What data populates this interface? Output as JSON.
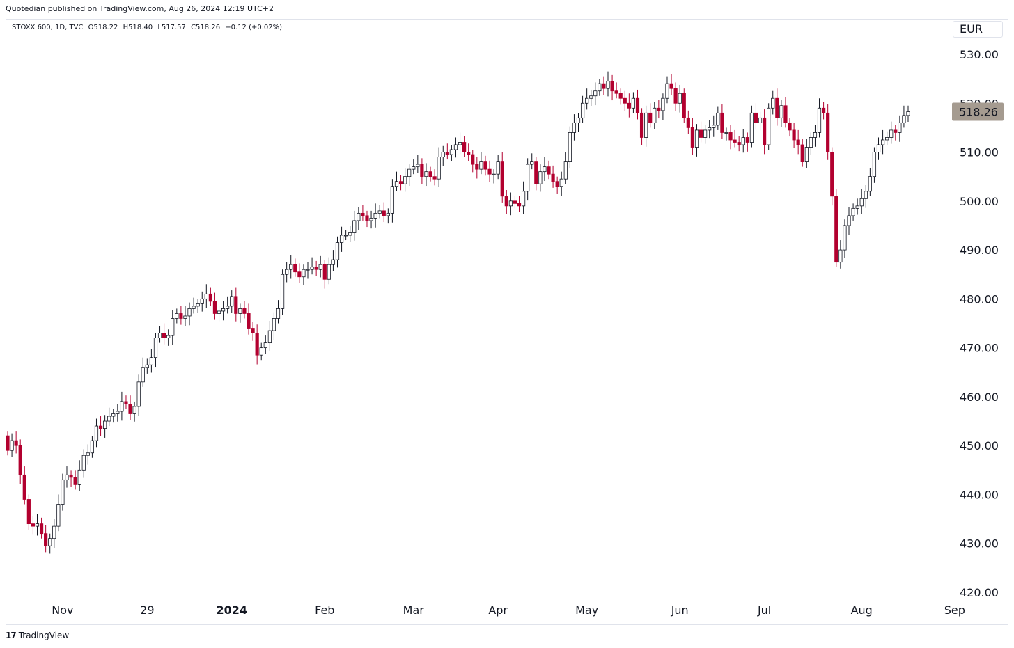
{
  "header": {
    "published_line": "Quotedian published on TradingView.com, Aug 26, 2024 12:19 UTC+2"
  },
  "legend": {
    "symbol_line": "STOXX 600, 1D, TVC",
    "open": "O518.22",
    "high": "H518.40",
    "low": "L517.57",
    "close": "C518.26",
    "change": "+0.12 (+0.02%)"
  },
  "currency": "EUR",
  "footer": {
    "brand": "TradingView",
    "logo_text": "17"
  },
  "colors": {
    "up": "#ffffff",
    "down": "#b2002f",
    "up_border": "#131722",
    "last_price_bg": "#a59b90"
  },
  "chart_data": {
    "type": "candlestick",
    "title": "STOXX 600, 1D, TVC",
    "ylabel": "EUR",
    "ylim": [
      420,
      530
    ],
    "yticks": [
      420,
      430,
      440,
      450,
      460,
      470,
      480,
      490,
      500,
      510,
      520,
      530
    ],
    "ytick_labels": [
      "420.00",
      "430.00",
      "440.00",
      "450.00",
      "460.00",
      "470.00",
      "480.00",
      "490.00",
      "500.00",
      "510.00",
      "520.00",
      "530.00"
    ],
    "xtick_labels": [
      {
        "label": "Nov",
        "index": 13,
        "bold": false
      },
      {
        "label": "29",
        "index": 33,
        "bold": false
      },
      {
        "label": "2024",
        "index": 53,
        "bold": true
      },
      {
        "label": "Feb",
        "index": 75,
        "bold": false
      },
      {
        "label": "Mar",
        "index": 96,
        "bold": false
      },
      {
        "label": "Apr",
        "index": 116,
        "bold": false
      },
      {
        "label": "May",
        "index": 137,
        "bold": false
      },
      {
        "label": "Jun",
        "index": 159,
        "bold": false
      },
      {
        "label": "Jul",
        "index": 179,
        "bold": false
      },
      {
        "label": "Aug",
        "index": 202,
        "bold": false
      },
      {
        "label": "Sep",
        "index": 224,
        "bold": false
      }
    ],
    "last_price": "518.26",
    "grid": false,
    "closes": [
      449.0,
      451.0,
      450.0,
      444.0,
      439.0,
      434.0,
      433.5,
      434.0,
      432.0,
      429.5,
      431.0,
      433.5,
      438.0,
      443.0,
      444.0,
      443.5,
      442.0,
      445.0,
      448.0,
      448.5,
      451.0,
      454.0,
      453.5,
      455.0,
      456.0,
      456.5,
      457.0,
      459.0,
      458.5,
      456.5,
      458.0,
      463.0,
      466.0,
      466.5,
      468.0,
      472.0,
      473.0,
      472.0,
      472.5,
      476.0,
      477.0,
      476.0,
      476.5,
      478.0,
      478.5,
      479.0,
      480.0,
      481.0,
      479.5,
      477.0,
      477.5,
      478.0,
      478.5,
      480.5,
      477.0,
      478.0,
      477.0,
      474.0,
      473.0,
      468.5,
      470.0,
      471.0,
      473.5,
      476.0,
      478.0,
      485.0,
      486.0,
      487.0,
      485.5,
      484.5,
      486.0,
      486.0,
      486.5,
      486.0,
      487.0,
      484.0,
      487.0,
      488.0,
      491.5,
      493.0,
      493.0,
      493.5,
      496.0,
      497.5,
      497.0,
      496.0,
      496.5,
      497.5,
      498.0,
      497.0,
      497.5,
      503.0,
      504.0,
      503.5,
      505.0,
      506.5,
      507.0,
      507.5,
      505.0,
      506.0,
      505.0,
      504.5,
      509.0,
      510.0,
      509.5,
      510.5,
      511.5,
      512.0,
      510.0,
      509.5,
      507.5,
      506.5,
      508.0,
      506.5,
      505.5,
      505.5,
      508.0,
      501.0,
      499.0,
      500.0,
      499.5,
      499.0,
      502.0,
      507.5,
      508.0,
      503.5,
      506.0,
      507.0,
      505.5,
      504.0,
      503.0,
      504.5,
      508.0,
      514.0,
      516.0,
      517.0,
      520.0,
      521.0,
      521.5,
      522.5,
      524.0,
      523.0,
      524.5,
      522.5,
      522.0,
      521.0,
      520.0,
      519.0,
      521.0,
      518.0,
      513.0,
      518.0,
      516.0,
      519.0,
      518.5,
      521.0,
      524.0,
      523.0,
      520.0,
      522.0,
      517.0,
      515.0,
      511.0,
      514.5,
      513.0,
      514.5,
      515.0,
      515.5,
      518.0,
      514.0,
      514.0,
      512.5,
      512.0,
      511.5,
      513.0,
      512.0,
      518.0,
      516.0,
      517.0,
      511.5,
      519.0,
      521.0,
      517.0,
      519.5,
      516.0,
      514.5,
      512.5,
      511.5,
      508.0,
      511.0,
      513.0,
      514.0,
      519.0,
      518.0,
      510.0,
      501.0,
      487.5,
      490.0,
      495.0,
      497.0,
      498.5,
      499.0,
      500.5,
      502.0,
      505.0,
      510.0,
      511.5,
      512.5,
      513.0,
      514.5,
      514.0,
      516.0,
      517.5,
      518.26
    ]
  }
}
